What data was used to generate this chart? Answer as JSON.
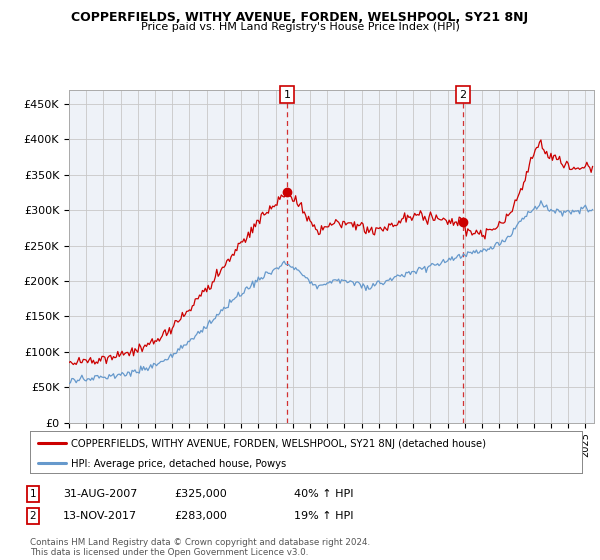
{
  "title": "COPPERFIELDS, WITHY AVENUE, FORDEN, WELSHPOOL, SY21 8NJ",
  "subtitle": "Price paid vs. HM Land Registry's House Price Index (HPI)",
  "xlim_start": 1995.0,
  "xlim_end": 2025.5,
  "ylim_min": 0,
  "ylim_max": 470000,
  "yticks": [
    0,
    50000,
    100000,
    150000,
    200000,
    250000,
    300000,
    350000,
    400000,
    450000
  ],
  "ytick_labels": [
    "£0",
    "£50K",
    "£100K",
    "£150K",
    "£200K",
    "£250K",
    "£300K",
    "£350K",
    "£400K",
    "£450K"
  ],
  "sale1_x": 2007.667,
  "sale1_y": 325000,
  "sale2_x": 2017.867,
  "sale2_y": 283000,
  "legend_line1": "COPPERFIELDS, WITHY AVENUE, FORDEN, WELSHPOOL, SY21 8NJ (detached house)",
  "legend_line2": "HPI: Average price, detached house, Powys",
  "ann1_date": "31-AUG-2007",
  "ann1_price": "£325,000",
  "ann1_hpi": "40% ↑ HPI",
  "ann2_date": "13-NOV-2017",
  "ann2_price": "£283,000",
  "ann2_hpi": "19% ↑ HPI",
  "footer": "Contains HM Land Registry data © Crown copyright and database right 2024.\nThis data is licensed under the Open Government Licence v3.0.",
  "line_color_red": "#cc0000",
  "line_color_blue": "#6699cc",
  "background_color": "#eef2f8",
  "grid_color": "#c8c8c8"
}
